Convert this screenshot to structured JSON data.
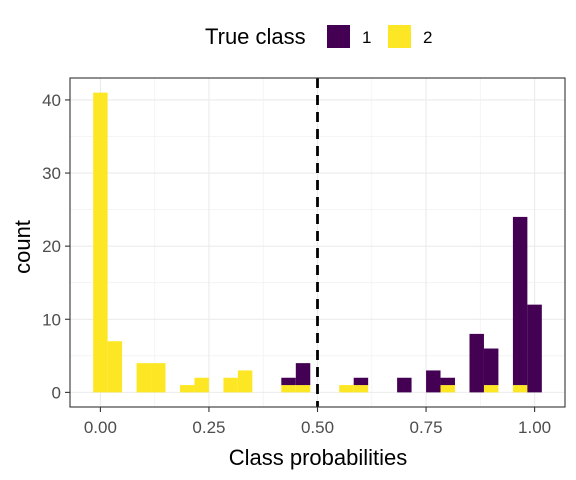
{
  "chart_data": {
    "type": "bar",
    "title": "",
    "xlabel": "Class probabilities",
    "ylabel": "count",
    "xlim": [
      -0.07,
      1.07
    ],
    "ylim": [
      -2,
      43
    ],
    "x_ticks": [
      "0.00",
      "0.25",
      "0.50",
      "0.75",
      "1.00"
    ],
    "x_tick_values": [
      0,
      0.25,
      0.5,
      0.75,
      1
    ],
    "y_ticks": [
      "0",
      "10",
      "20",
      "30",
      "40"
    ],
    "y_tick_values": [
      0,
      10,
      20,
      30,
      40
    ],
    "bin_width": 0.0333,
    "stacked": true,
    "threshold": 0.5,
    "legend": {
      "title": "True class",
      "position": "top",
      "entries": [
        {
          "label": "1",
          "color": "#440154"
        },
        {
          "label": "2",
          "color": "#FDE725"
        }
      ]
    },
    "bins": [
      0.0,
      0.0333,
      0.1,
      0.1333,
      0.2,
      0.2333,
      0.3,
      0.3333,
      0.4333,
      0.4667,
      0.5667,
      0.6,
      0.7,
      0.7667,
      0.8,
      0.8667,
      0.9,
      0.9667,
      1.0
    ],
    "series": [
      {
        "name": "1",
        "color": "#440154",
        "values": [
          0,
          0,
          0,
          0,
          0,
          0,
          0,
          0,
          1,
          3,
          0,
          1,
          2,
          3,
          1,
          8,
          5,
          23,
          12
        ]
      },
      {
        "name": "2",
        "color": "#FDE725",
        "values": [
          41,
          7,
          4,
          4,
          1,
          2,
          2,
          3,
          1,
          1,
          1,
          1,
          0,
          0,
          1,
          0,
          1,
          1,
          0
        ]
      }
    ],
    "grid": true
  }
}
